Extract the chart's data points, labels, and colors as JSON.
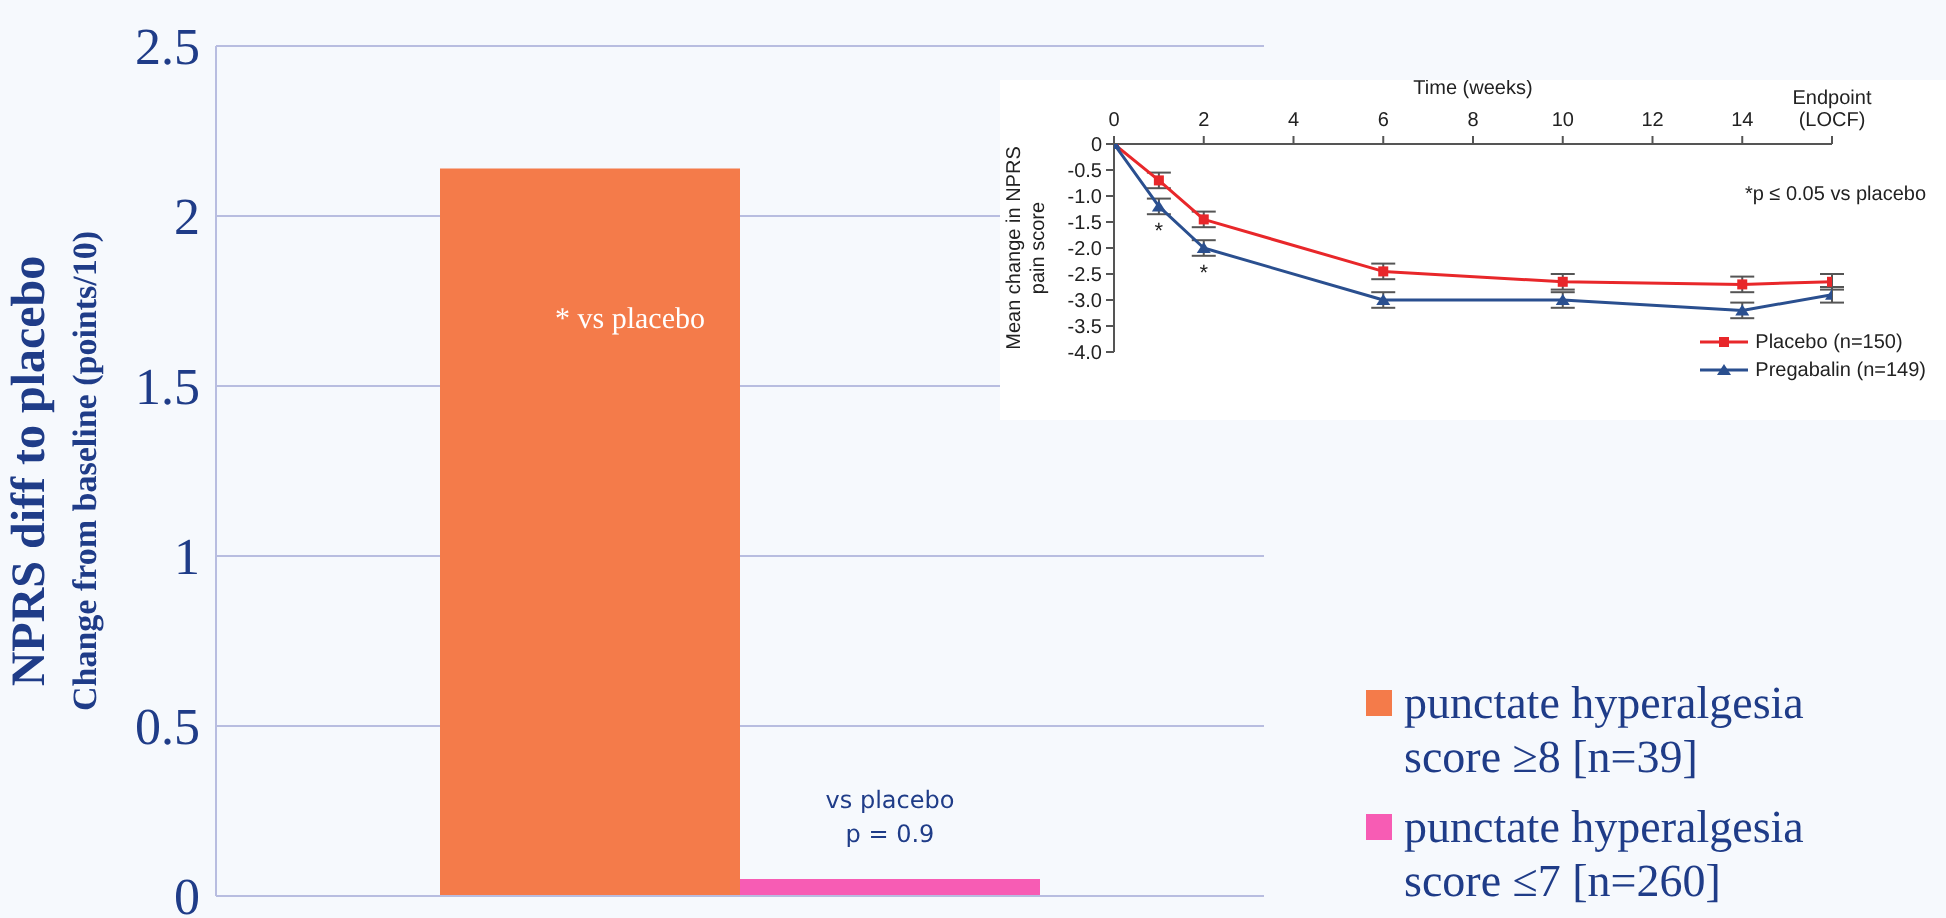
{
  "chart_data": [
    {
      "type": "bar",
      "ylabel": "NPRS  diff to placebo\nChange from baseline (points/10)",
      "categories": [
        null
      ],
      "series": [
        {
          "name": "punctate hyperalgesia score ≥8 [n=39]",
          "color": "#f47b4a",
          "values": [
            2.14
          ]
        },
        {
          "name": "punctate hyperalgesia score ≤7 [n=260]",
          "color": "#f75cb4",
          "values": [
            0.05
          ]
        }
      ],
      "annotations": [
        "* vs placebo",
        "vs placebo\np = 0.9"
      ],
      "ylim": [
        0,
        2.5
      ],
      "yticks": [
        0,
        0.5,
        1,
        1.5,
        2,
        2.5
      ],
      "grid": "y",
      "legend": "right"
    },
    {
      "type": "line",
      "xlabel": "Time (weeks)",
      "ylabel": "Mean change in NPRS\npain score",
      "x": [
        0,
        1,
        2,
        6,
        10,
        14,
        16
      ],
      "series": [
        {
          "name": "Placebo (n=150)",
          "color": "#e8272a",
          "marker": "square",
          "values": [
            0,
            -0.7,
            -1.45,
            -2.45,
            -2.65,
            -2.7,
            -2.65
          ],
          "errors": [
            null,
            0.15,
            0.15,
            0.15,
            0.15,
            0.15,
            0.15
          ]
        },
        {
          "name": "Pregabalin (n=149)",
          "color": "#2a4f8f",
          "marker": "triangle",
          "values": [
            0,
            -1.2,
            -2.0,
            -3.0,
            -3.0,
            -3.2,
            -2.9
          ],
          "errors": [
            null,
            0.15,
            0.15,
            0.15,
            0.15,
            0.15,
            0.15
          ]
        }
      ],
      "annotations": [
        {
          "text": "*",
          "x": 1,
          "y": -1.2
        },
        {
          "text": "*",
          "x": 2,
          "y": -2.0
        },
        "*p ≤ 0.05 vs placebo"
      ],
      "xlim": [
        0,
        16
      ],
      "xticks": [
        0,
        2,
        4,
        6,
        8,
        10,
        12,
        14,
        {
          "value": 16,
          "label": "Endpoint\n(LOCF)"
        }
      ],
      "ylim": [
        -4,
        0
      ],
      "yticks": [
        0,
        {
          "value": -0.5,
          "label": "-0.5"
        },
        {
          "value": -1,
          "label": "-1.0"
        },
        {
          "value": -1.5,
          "label": "-1.5"
        },
        {
          "value": -2,
          "label": "-2.0"
        },
        {
          "value": -2.5,
          "label": "-2.5"
        },
        {
          "value": -3,
          "label": "-3.0"
        },
        {
          "value": -3.5,
          "label": "-3.5"
        },
        {
          "value": -4,
          "label": "-4.0"
        }
      ],
      "legend": "bottom right",
      "line_style": "solid"
    }
  ]
}
